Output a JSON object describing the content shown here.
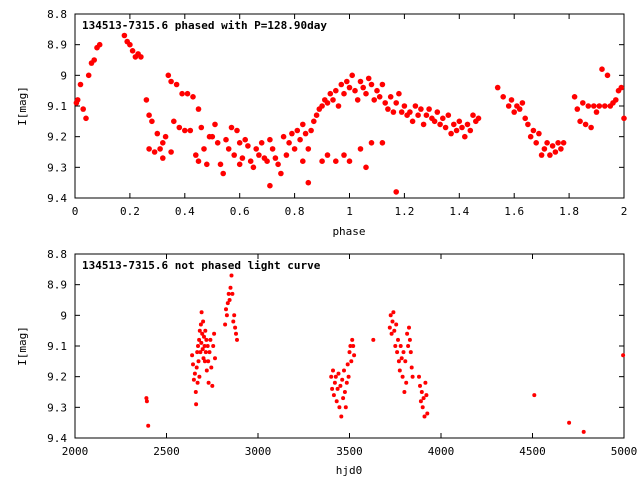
{
  "chart_data": [
    {
      "type": "scatter",
      "title": "134513-7315.6 phased with P=128.90day",
      "xlabel": "phase",
      "ylabel": "I[mag]",
      "xlim": [
        0,
        2
      ],
      "ylim": [
        8.8,
        9.4
      ],
      "y_inverted": true,
      "grid": false,
      "marker": "filled-circle",
      "color": "#ff0000",
      "xticks": [
        "0",
        "0.2",
        "0.4",
        "0.6",
        "0.8",
        "1",
        "1.2",
        "1.4",
        "1.6",
        "1.8",
        "2"
      ],
      "yticks": [
        "8.8",
        "8.9",
        "9",
        "9.1",
        "9.2",
        "9.3",
        "9.4"
      ],
      "points": [
        [
          0.005,
          9.09
        ],
        [
          0.01,
          9.08
        ],
        [
          0.02,
          9.03
        ],
        [
          0.03,
          9.11
        ],
        [
          0.04,
          9.14
        ],
        [
          0.05,
          9.0
        ],
        [
          0.06,
          8.96
        ],
        [
          0.07,
          8.95
        ],
        [
          0.08,
          8.91
        ],
        [
          0.09,
          8.9
        ],
        [
          0.18,
          8.87
        ],
        [
          0.19,
          8.89
        ],
        [
          0.2,
          8.9
        ],
        [
          0.21,
          8.92
        ],
        [
          0.22,
          8.94
        ],
        [
          0.23,
          8.93
        ],
        [
          0.24,
          8.94
        ],
        [
          0.26,
          9.08
        ],
        [
          0.27,
          9.13
        ],
        [
          0.28,
          9.15
        ],
        [
          0.27,
          9.24
        ],
        [
          0.29,
          9.25
        ],
        [
          0.3,
          9.19
        ],
        [
          0.31,
          9.24
        ],
        [
          0.32,
          9.22
        ],
        [
          0.33,
          9.2
        ],
        [
          0.34,
          9.0
        ],
        [
          0.35,
          9.02
        ],
        [
          0.36,
          9.15
        ],
        [
          0.37,
          9.03
        ],
        [
          0.38,
          9.17
        ],
        [
          0.39,
          9.06
        ],
        [
          0.4,
          9.18
        ],
        [
          0.41,
          9.06
        ],
        [
          0.42,
          9.18
        ],
        [
          0.43,
          9.07
        ],
        [
          0.44,
          9.26
        ],
        [
          0.45,
          9.11
        ],
        [
          0.46,
          9.17
        ],
        [
          0.47,
          9.24
        ],
        [
          0.48,
          9.29
        ],
        [
          0.49,
          9.2
        ],
        [
          0.5,
          9.2
        ],
        [
          0.51,
          9.16
        ],
        [
          0.52,
          9.22
        ],
        [
          0.53,
          9.29
        ],
        [
          0.54,
          9.32
        ],
        [
          0.55,
          9.21
        ],
        [
          0.56,
          9.24
        ],
        [
          0.57,
          9.17
        ],
        [
          0.58,
          9.26
        ],
        [
          0.59,
          9.18
        ],
        [
          0.6,
          9.22
        ],
        [
          0.61,
          9.27
        ],
        [
          0.62,
          9.21
        ],
        [
          0.63,
          9.23
        ],
        [
          0.64,
          9.28
        ],
        [
          0.65,
          9.3
        ],
        [
          0.66,
          9.24
        ],
        [
          0.67,
          9.26
        ],
        [
          0.68,
          9.22
        ],
        [
          0.69,
          9.27
        ],
        [
          0.7,
          9.28
        ],
        [
          0.71,
          9.21
        ],
        [
          0.72,
          9.24
        ],
        [
          0.73,
          9.27
        ],
        [
          0.74,
          9.29
        ],
        [
          0.75,
          9.32
        ],
        [
          0.76,
          9.2
        ],
        [
          0.77,
          9.26
        ],
        [
          0.78,
          9.22
        ],
        [
          0.79,
          9.19
        ],
        [
          0.8,
          9.24
        ],
        [
          0.81,
          9.18
        ],
        [
          0.82,
          9.21
        ],
        [
          0.83,
          9.16
        ],
        [
          0.84,
          9.19
        ],
        [
          0.85,
          9.24
        ],
        [
          0.86,
          9.18
        ],
        [
          0.87,
          9.15
        ],
        [
          0.88,
          9.13
        ],
        [
          0.89,
          9.11
        ],
        [
          0.9,
          9.1
        ],
        [
          0.91,
          9.08
        ],
        [
          0.92,
          9.09
        ],
        [
          0.93,
          9.06
        ],
        [
          0.94,
          9.08
        ],
        [
          0.95,
          9.05
        ],
        [
          0.96,
          9.1
        ],
        [
          0.97,
          9.03
        ],
        [
          0.98,
          9.06
        ],
        [
          0.99,
          9.02
        ],
        [
          1.0,
          9.04
        ],
        [
          1.01,
          9.0
        ],
        [
          1.02,
          9.05
        ],
        [
          1.03,
          9.08
        ],
        [
          1.04,
          9.02
        ],
        [
          1.05,
          9.04
        ],
        [
          1.06,
          9.06
        ],
        [
          1.07,
          9.01
        ],
        [
          1.08,
          9.03
        ],
        [
          1.09,
          9.08
        ],
        [
          1.1,
          9.05
        ],
        [
          1.11,
          9.07
        ],
        [
          1.12,
          9.03
        ],
        [
          1.13,
          9.09
        ],
        [
          1.14,
          9.11
        ],
        [
          1.15,
          9.07
        ],
        [
          1.16,
          9.12
        ],
        [
          1.17,
          9.09
        ],
        [
          1.18,
          9.06
        ],
        [
          1.19,
          9.12
        ],
        [
          1.2,
          9.1
        ],
        [
          1.21,
          9.13
        ],
        [
          1.22,
          9.12
        ],
        [
          1.23,
          9.15
        ],
        [
          1.24,
          9.1
        ],
        [
          1.25,
          9.13
        ],
        [
          1.26,
          9.11
        ],
        [
          1.27,
          9.16
        ],
        [
          1.28,
          9.13
        ],
        [
          1.29,
          9.11
        ],
        [
          1.3,
          9.14
        ],
        [
          1.31,
          9.15
        ],
        [
          1.32,
          9.12
        ],
        [
          1.33,
          9.16
        ],
        [
          1.34,
          9.14
        ],
        [
          1.35,
          9.17
        ],
        [
          1.36,
          9.13
        ],
        [
          1.37,
          9.19
        ],
        [
          1.38,
          9.16
        ],
        [
          1.39,
          9.18
        ],
        [
          1.4,
          9.15
        ],
        [
          1.41,
          9.17
        ],
        [
          1.42,
          9.2
        ],
        [
          1.43,
          9.16
        ],
        [
          1.44,
          9.18
        ],
        [
          1.45,
          9.13
        ],
        [
          1.46,
          9.15
        ],
        [
          1.47,
          9.14
        ],
        [
          0.45,
          9.28
        ],
        [
          0.35,
          9.25
        ],
        [
          0.32,
          9.27
        ],
        [
          0.9,
          9.28
        ],
        [
          0.92,
          9.26
        ],
        [
          0.95,
          9.28
        ],
        [
          0.98,
          9.26
        ],
        [
          1.0,
          9.28
        ],
        [
          1.04,
          9.24
        ],
        [
          1.06,
          9.3
        ],
        [
          1.08,
          9.22
        ],
        [
          0.85,
          9.35
        ],
        [
          0.71,
          9.36
        ],
        [
          0.6,
          9.29
        ],
        [
          0.83,
          9.28
        ],
        [
          1.12,
          9.22
        ],
        [
          1.17,
          9.38
        ],
        [
          1.54,
          9.04
        ],
        [
          1.56,
          9.07
        ],
        [
          1.58,
          9.1
        ],
        [
          1.59,
          9.08
        ],
        [
          1.6,
          9.12
        ],
        [
          1.61,
          9.1
        ],
        [
          1.62,
          9.11
        ],
        [
          1.63,
          9.09
        ],
        [
          1.64,
          9.14
        ],
        [
          1.65,
          9.16
        ],
        [
          1.66,
          9.2
        ],
        [
          1.67,
          9.18
        ],
        [
          1.68,
          9.22
        ],
        [
          1.69,
          9.19
        ],
        [
          1.7,
          9.26
        ],
        [
          1.71,
          9.24
        ],
        [
          1.72,
          9.22
        ],
        [
          1.73,
          9.26
        ],
        [
          1.74,
          9.23
        ],
        [
          1.75,
          9.25
        ],
        [
          1.76,
          9.22
        ],
        [
          1.77,
          9.24
        ],
        [
          1.78,
          9.22
        ],
        [
          1.82,
          9.07
        ],
        [
          1.83,
          9.11
        ],
        [
          1.84,
          9.15
        ],
        [
          1.85,
          9.09
        ],
        [
          1.86,
          9.16
        ],
        [
          1.87,
          9.1
        ],
        [
          1.88,
          9.17
        ],
        [
          1.89,
          9.1
        ],
        [
          1.9,
          9.12
        ],
        [
          1.91,
          9.1
        ],
        [
          1.92,
          8.98
        ],
        [
          1.93,
          9.1
        ],
        [
          1.94,
          9.0
        ],
        [
          1.95,
          9.1
        ],
        [
          1.96,
          9.09
        ],
        [
          1.97,
          9.08
        ],
        [
          1.98,
          9.05
        ],
        [
          1.99,
          9.04
        ],
        [
          2.0,
          9.14
        ]
      ]
    },
    {
      "type": "scatter",
      "title": "134513-7315.6 not phased light curve",
      "xlabel": "hjd0",
      "ylabel": "I[mag]",
      "xlim": [
        2000,
        5000
      ],
      "ylim": [
        8.8,
        9.4
      ],
      "y_inverted": true,
      "grid": false,
      "marker": "filled-circle",
      "color": "#ff0000",
      "xticks": [
        "2000",
        "2500",
        "3000",
        "3500",
        "4000",
        "4500",
        "5000"
      ],
      "yticks": [
        "8.8",
        "8.9",
        "9",
        "9.1",
        "9.2",
        "9.3",
        "9.4"
      ],
      "points": [
        [
          2390,
          9.27
        ],
        [
          2393,
          9.28
        ],
        [
          2400,
          9.36
        ],
        [
          2640,
          9.13
        ],
        [
          2645,
          9.16
        ],
        [
          2650,
          9.21
        ],
        [
          2655,
          9.19
        ],
        [
          2660,
          9.25
        ],
        [
          2662,
          9.29
        ],
        [
          2665,
          9.17
        ],
        [
          2668,
          9.12
        ],
        [
          2670,
          9.22
        ],
        [
          2672,
          9.1
        ],
        [
          2675,
          9.15
        ],
        [
          2678,
          9.08
        ],
        [
          2680,
          9.2
        ],
        [
          2682,
          9.05
        ],
        [
          2685,
          9.12
        ],
        [
          2688,
          9.03
        ],
        [
          2690,
          9.09
        ],
        [
          2692,
          8.99
        ],
        [
          2695,
          9.06
        ],
        [
          2698,
          9.11
        ],
        [
          2700,
          9.02
        ],
        [
          2702,
          9.14
        ],
        [
          2705,
          9.07
        ],
        [
          2708,
          9.1
        ],
        [
          2710,
          9.15
        ],
        [
          2712,
          9.05
        ],
        [
          2715,
          9.12
        ],
        [
          2718,
          9.08
        ],
        [
          2720,
          9.18
        ],
        [
          2725,
          9.1
        ],
        [
          2728,
          9.15
        ],
        [
          2730,
          9.22
        ],
        [
          2735,
          9.12
        ],
        [
          2740,
          9.08
        ],
        [
          2745,
          9.17
        ],
        [
          2750,
          9.23
        ],
        [
          2755,
          9.1
        ],
        [
          2760,
          9.06
        ],
        [
          2765,
          9.14
        ],
        [
          2820,
          9.03
        ],
        [
          2825,
          8.98
        ],
        [
          2830,
          9.0
        ],
        [
          2835,
          8.96
        ],
        [
          2840,
          8.93
        ],
        [
          2845,
          8.95
        ],
        [
          2850,
          8.91
        ],
        [
          2855,
          8.87
        ],
        [
          2860,
          8.93
        ],
        [
          2865,
          9.02
        ],
        [
          2870,
          9.0
        ],
        [
          2875,
          9.04
        ],
        [
          2880,
          9.06
        ],
        [
          2885,
          9.08
        ],
        [
          3400,
          9.2
        ],
        [
          3405,
          9.24
        ],
        [
          3410,
          9.18
        ],
        [
          3415,
          9.26
        ],
        [
          3420,
          9.22
        ],
        [
          3425,
          9.2
        ],
        [
          3430,
          9.28
        ],
        [
          3435,
          9.24
        ],
        [
          3440,
          9.19
        ],
        [
          3445,
          9.3
        ],
        [
          3450,
          9.23
        ],
        [
          3455,
          9.33
        ],
        [
          3460,
          9.21
        ],
        [
          3465,
          9.27
        ],
        [
          3470,
          9.18
        ],
        [
          3475,
          9.25
        ],
        [
          3480,
          9.3
        ],
        [
          3485,
          9.22
        ],
        [
          3490,
          9.16
        ],
        [
          3495,
          9.2
        ],
        [
          3500,
          9.12
        ],
        [
          3505,
          9.1
        ],
        [
          3510,
          9.15
        ],
        [
          3515,
          9.08
        ],
        [
          3520,
          9.1
        ],
        [
          3525,
          9.13
        ],
        [
          3630,
          9.08
        ],
        [
          3720,
          9.04
        ],
        [
          3725,
          9.0
        ],
        [
          3730,
          9.06
        ],
        [
          3735,
          9.02
        ],
        [
          3740,
          8.99
        ],
        [
          3745,
          9.05
        ],
        [
          3750,
          9.1
        ],
        [
          3755,
          9.03
        ],
        [
          3760,
          9.12
        ],
        [
          3765,
          9.08
        ],
        [
          3770,
          9.15
        ],
        [
          3775,
          9.18
        ],
        [
          3780,
          9.1
        ],
        [
          3785,
          9.14
        ],
        [
          3790,
          9.2
        ],
        [
          3795,
          9.12
        ],
        [
          3800,
          9.25
        ],
        [
          3805,
          9.15
        ],
        [
          3810,
          9.22
        ],
        [
          3815,
          9.06
        ],
        [
          3820,
          9.1
        ],
        [
          3825,
          9.04
        ],
        [
          3830,
          9.08
        ],
        [
          3835,
          9.12
        ],
        [
          3840,
          9.17
        ],
        [
          3845,
          9.2
        ],
        [
          3880,
          9.2
        ],
        [
          3885,
          9.23
        ],
        [
          3890,
          9.28
        ],
        [
          3895,
          9.25
        ],
        [
          3900,
          9.3
        ],
        [
          3905,
          9.27
        ],
        [
          3910,
          9.33
        ],
        [
          3915,
          9.22
        ],
        [
          3920,
          9.26
        ],
        [
          3925,
          9.32
        ],
        [
          4510,
          9.26
        ],
        [
          4700,
          9.35
        ],
        [
          4780,
          9.38
        ],
        [
          4995,
          9.13
        ]
      ]
    }
  ]
}
